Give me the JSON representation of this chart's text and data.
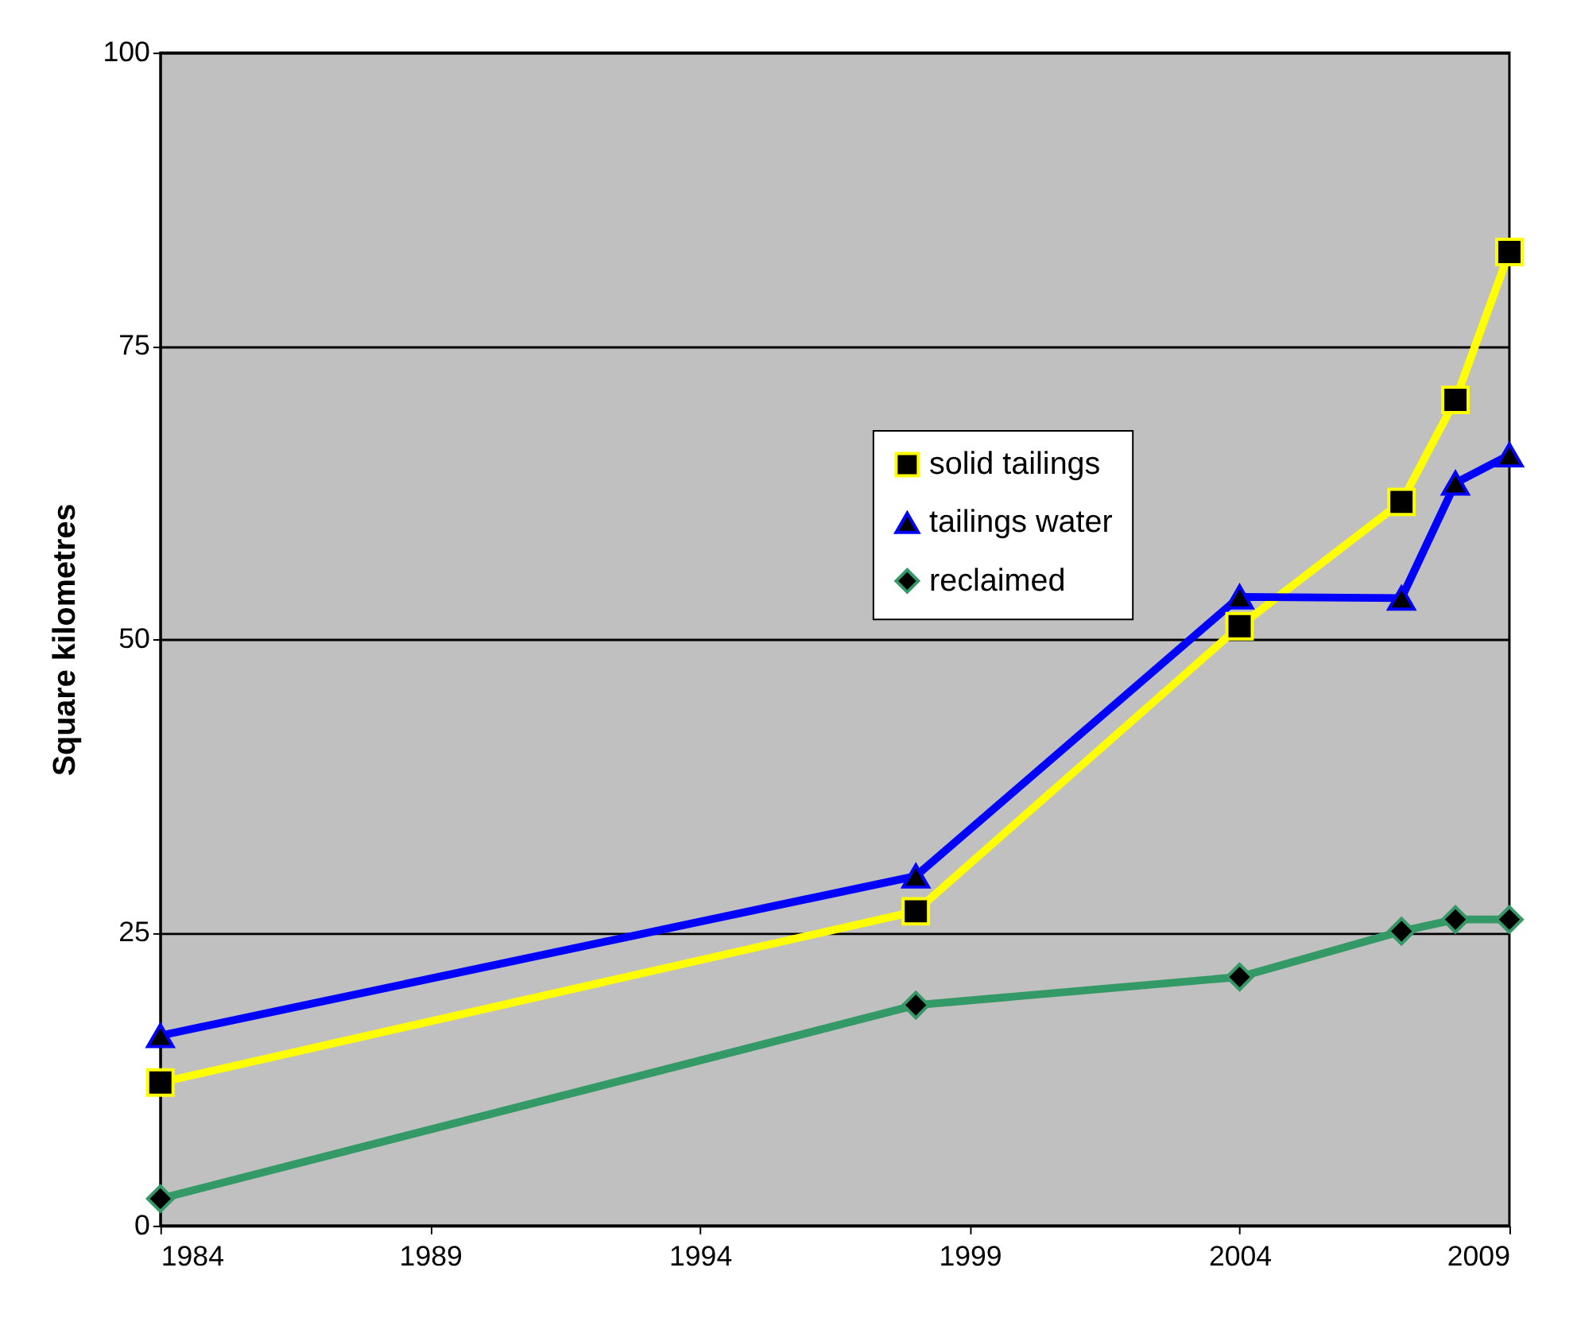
{
  "chart_data": {
    "type": "line",
    "ylabel": "Square kilometres",
    "x": [
      1984,
      1998,
      2004,
      2007,
      2008,
      2009
    ],
    "series": [
      {
        "name": "solid tailings",
        "color": "#ffff00",
        "marker": "square",
        "values": [
          12.2,
          26.8,
          51.1,
          61.7,
          70.4,
          83.0
        ]
      },
      {
        "name": "tailings water",
        "color": "#0000ff",
        "marker": "triangle",
        "values": [
          16.2,
          29.8,
          53.6,
          53.5,
          63.3,
          65.7
        ]
      },
      {
        "name": "reclaimed",
        "color": "#339966",
        "marker": "diamond",
        "values": [
          2.3,
          18.8,
          21.2,
          25.1,
          26.1,
          26.1
        ]
      }
    ],
    "xlim": [
      1984,
      2009
    ],
    "xticks": [
      1984,
      1989,
      1994,
      1999,
      2004,
      2009
    ],
    "ylim": [
      0,
      100
    ],
    "yticks": [
      0,
      25,
      50,
      75,
      100
    ],
    "grid": "y",
    "legend": "top right"
  }
}
